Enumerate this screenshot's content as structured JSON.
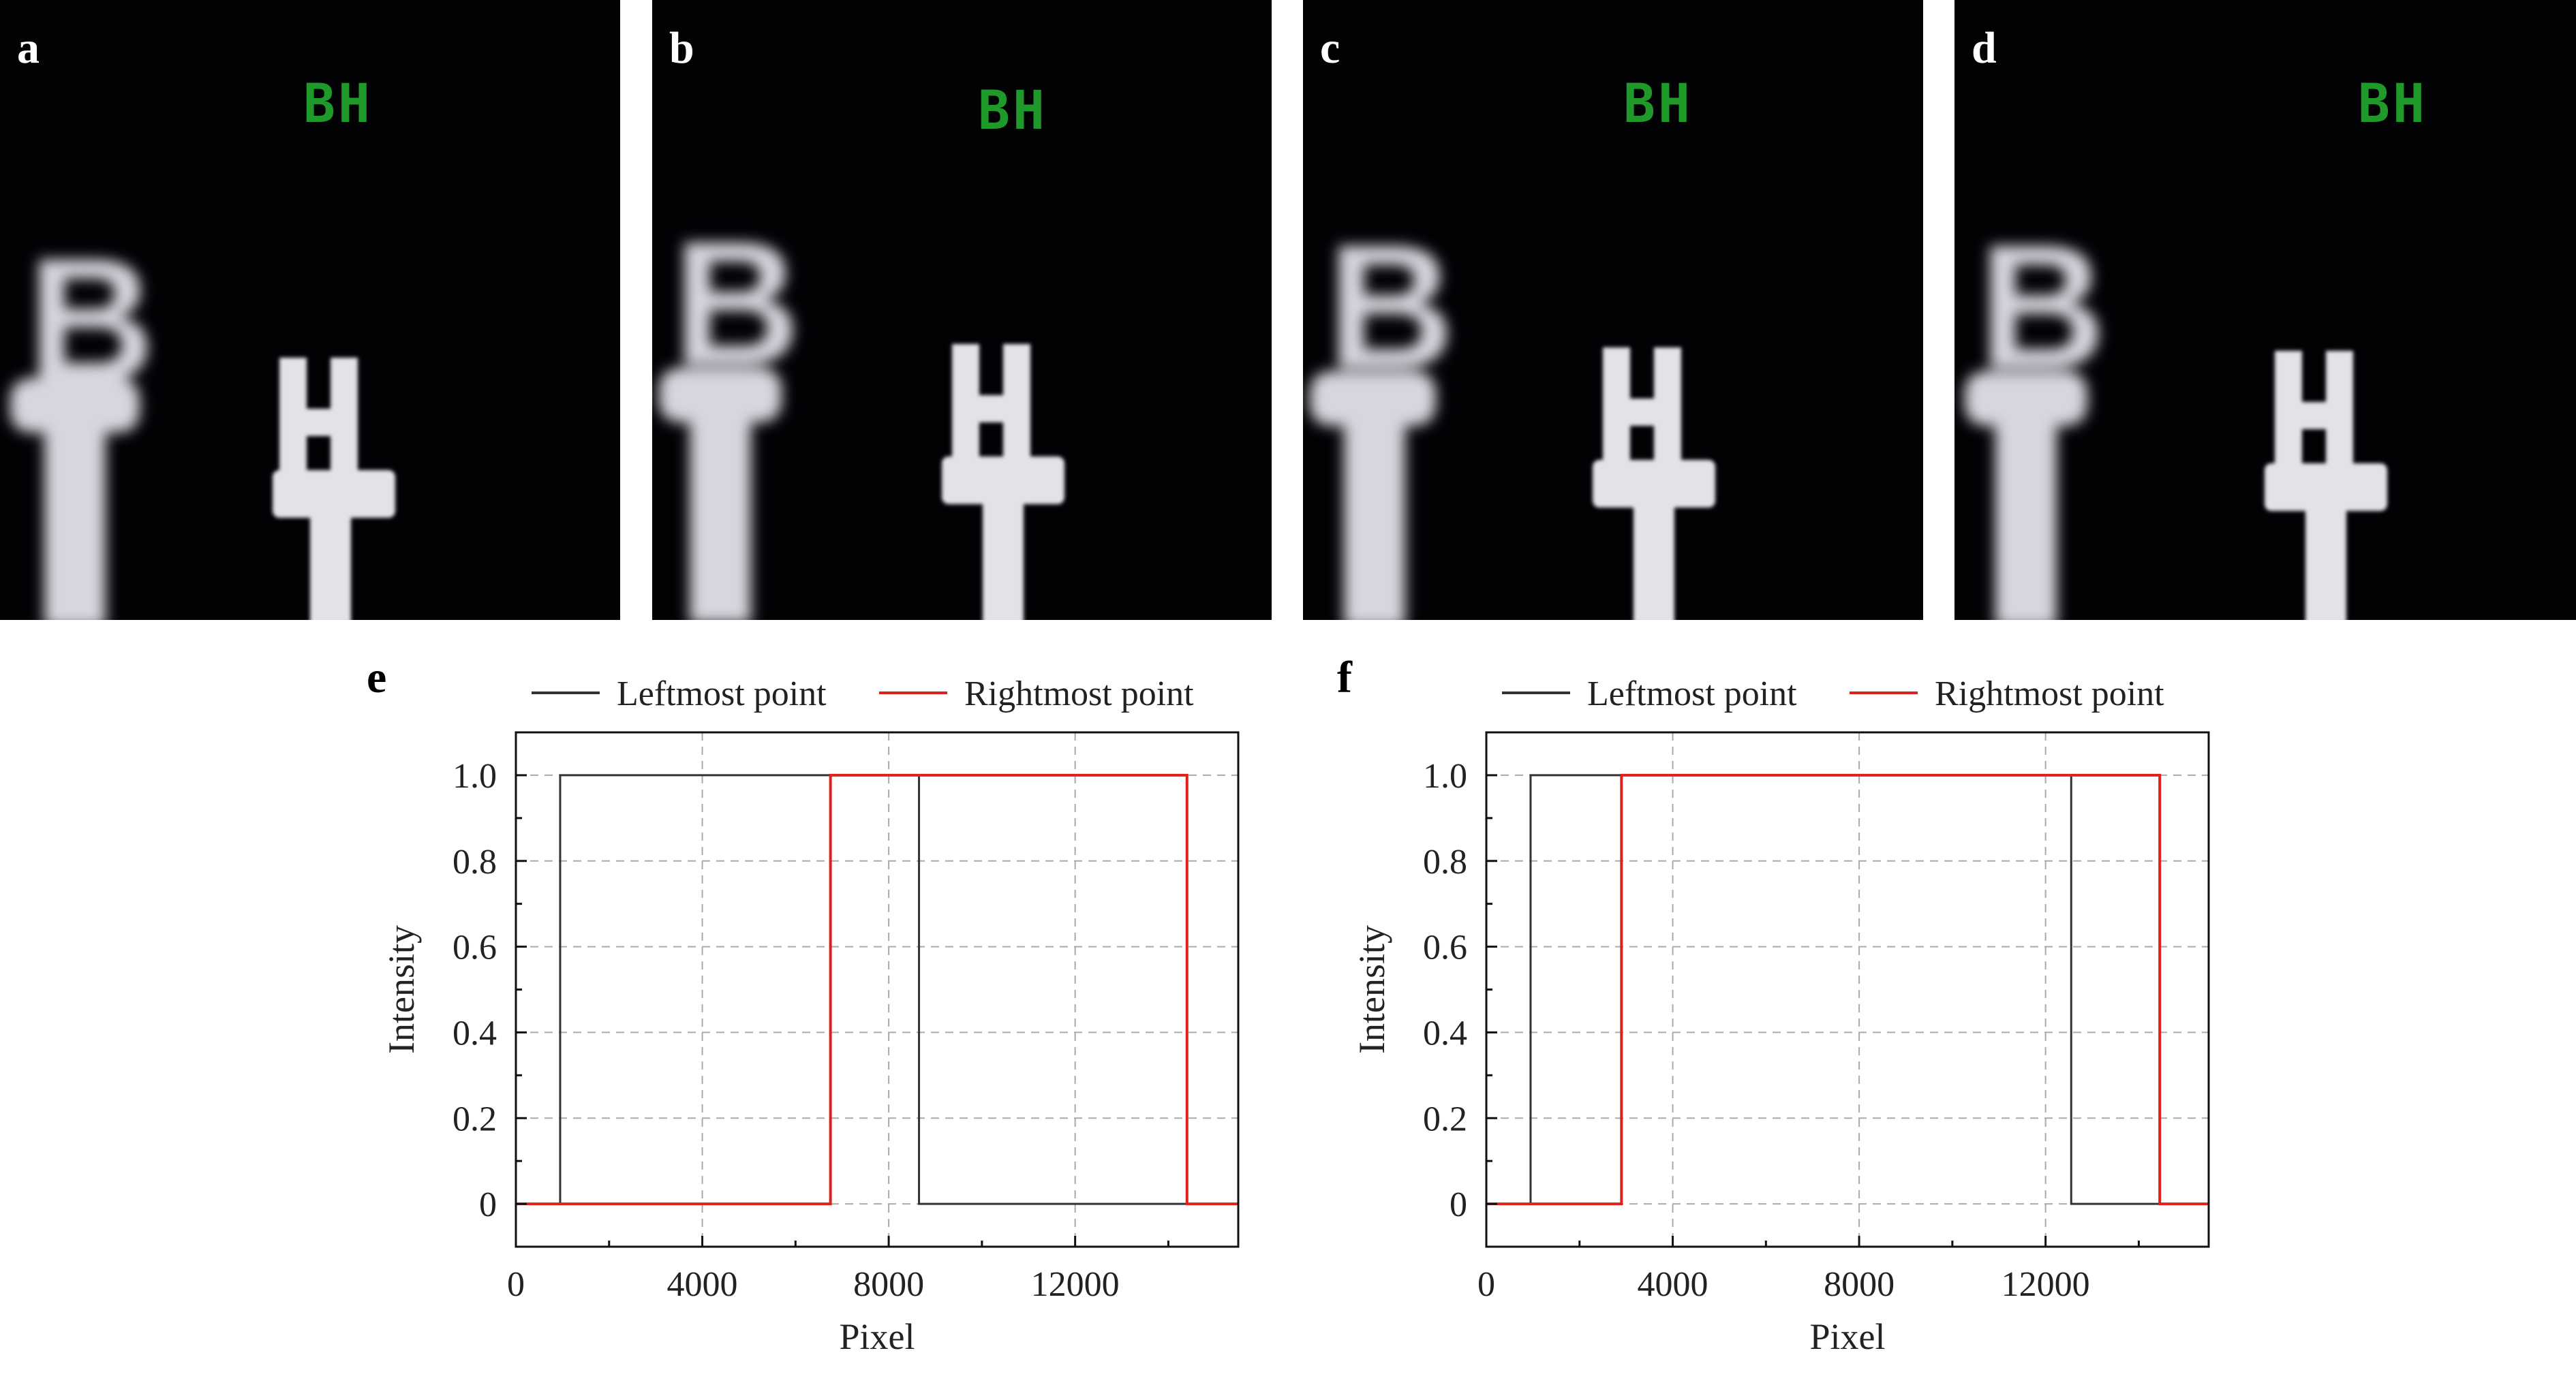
{
  "panels": [
    {
      "letter": "a",
      "overlay_text": "BH"
    },
    {
      "letter": "b",
      "overlay_text": "BH"
    },
    {
      "letter": "c",
      "overlay_text": "BH"
    },
    {
      "letter": "d",
      "overlay_text": "BH"
    }
  ],
  "colors": {
    "overlay_green": "#1f9a2a",
    "leftmost": "#333333",
    "rightmost": "#e0201e",
    "grid": "#aaaaaa"
  },
  "chart_data": [
    {
      "panel": "e",
      "type": "line",
      "xlabel": "Pixel",
      "ylabel": "Intensity",
      "xlim": [
        0,
        15500
      ],
      "ylim": [
        -0.1,
        1.1
      ],
      "xticks": [
        "0",
        "4000",
        "8000",
        "12000"
      ],
      "yticks": [
        "0",
        "0.2",
        "0.4",
        "0.6",
        "0.8",
        "1.0"
      ],
      "grid": true,
      "legend_position": "top",
      "series": [
        {
          "name": "Leftmost point",
          "x": [
            0,
            950,
            950,
            8650,
            8650,
            15500
          ],
          "y": [
            0,
            0,
            1,
            1,
            0,
            0
          ]
        },
        {
          "name": "Rightmost point",
          "x": [
            0,
            6750,
            6750,
            14400,
            14400,
            15500
          ],
          "y": [
            0,
            0,
            1,
            1,
            0,
            0
          ]
        }
      ]
    },
    {
      "panel": "f",
      "type": "line",
      "xlabel": "Pixel",
      "ylabel": "Intensity",
      "xlim": [
        0,
        15500
      ],
      "ylim": [
        -0.1,
        1.1
      ],
      "xticks": [
        "0",
        "4000",
        "8000",
        "12000"
      ],
      "yticks": [
        "0",
        "0.2",
        "0.4",
        "0.6",
        "0.8",
        "1.0"
      ],
      "grid": true,
      "legend_position": "top",
      "series": [
        {
          "name": "Leftmost point",
          "x": [
            0,
            950,
            950,
            12550,
            12550,
            15500
          ],
          "y": [
            0,
            0,
            1,
            1,
            0,
            0
          ]
        },
        {
          "name": "Rightmost point",
          "x": [
            0,
            2900,
            2900,
            14450,
            14450,
            15500
          ],
          "y": [
            0,
            0,
            1,
            1,
            0,
            0
          ]
        }
      ]
    }
  ]
}
